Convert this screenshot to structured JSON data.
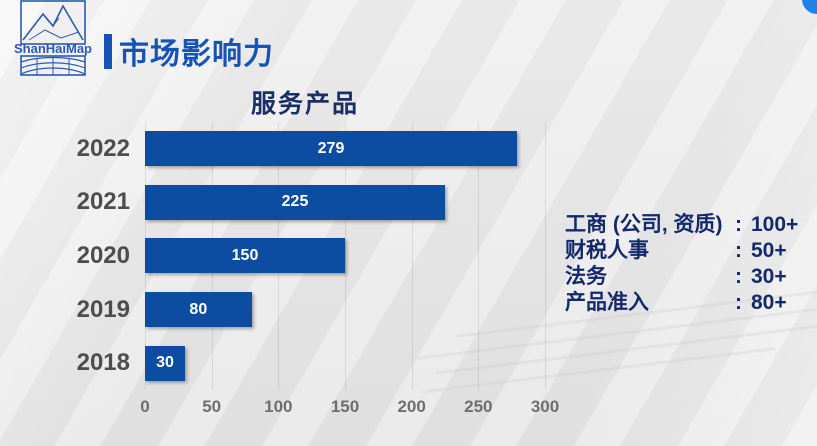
{
  "header": {
    "title": "市场影响力",
    "logo_text": "ShanHaiMap"
  },
  "chart_data": {
    "type": "bar",
    "orientation": "horizontal",
    "title": "服务产品",
    "categories": [
      "2022",
      "2021",
      "2020",
      "2019",
      "2018"
    ],
    "values": [
      279,
      225,
      150,
      80,
      30
    ],
    "xlabel": "",
    "ylabel": "",
    "xlim": [
      0,
      300
    ],
    "x_ticks": [
      "0",
      "50",
      "100",
      "150",
      "200",
      "250",
      "300"
    ],
    "grid": true,
    "legend": false,
    "value_labels_inside_bars": true
  },
  "stats": {
    "items": [
      {
        "label": "工商 (公司, 资质)",
        "colon": ":",
        "value": "100+"
      },
      {
        "label": "财税人事",
        "colon": ":",
        "value": "50+"
      },
      {
        "label": "法务",
        "colon": ":",
        "value": "30+"
      },
      {
        "label": "产品准入",
        "colon": ":",
        "value": "80+"
      }
    ]
  },
  "colors": {
    "bar_blue": "#0c4da2",
    "header_blue": "#1553b5",
    "logo_blue": "#2b59b5",
    "chart_title_navy": "#1a2f66",
    "stats_navy": "#14296b",
    "year_label_gray": "#4d4d4d",
    "tick_gray": "#6e6e6e",
    "bar_value_white": "#ffffff",
    "accent_circle_blue": "#1e82ea",
    "background_gray": "#e9e9e9"
  }
}
